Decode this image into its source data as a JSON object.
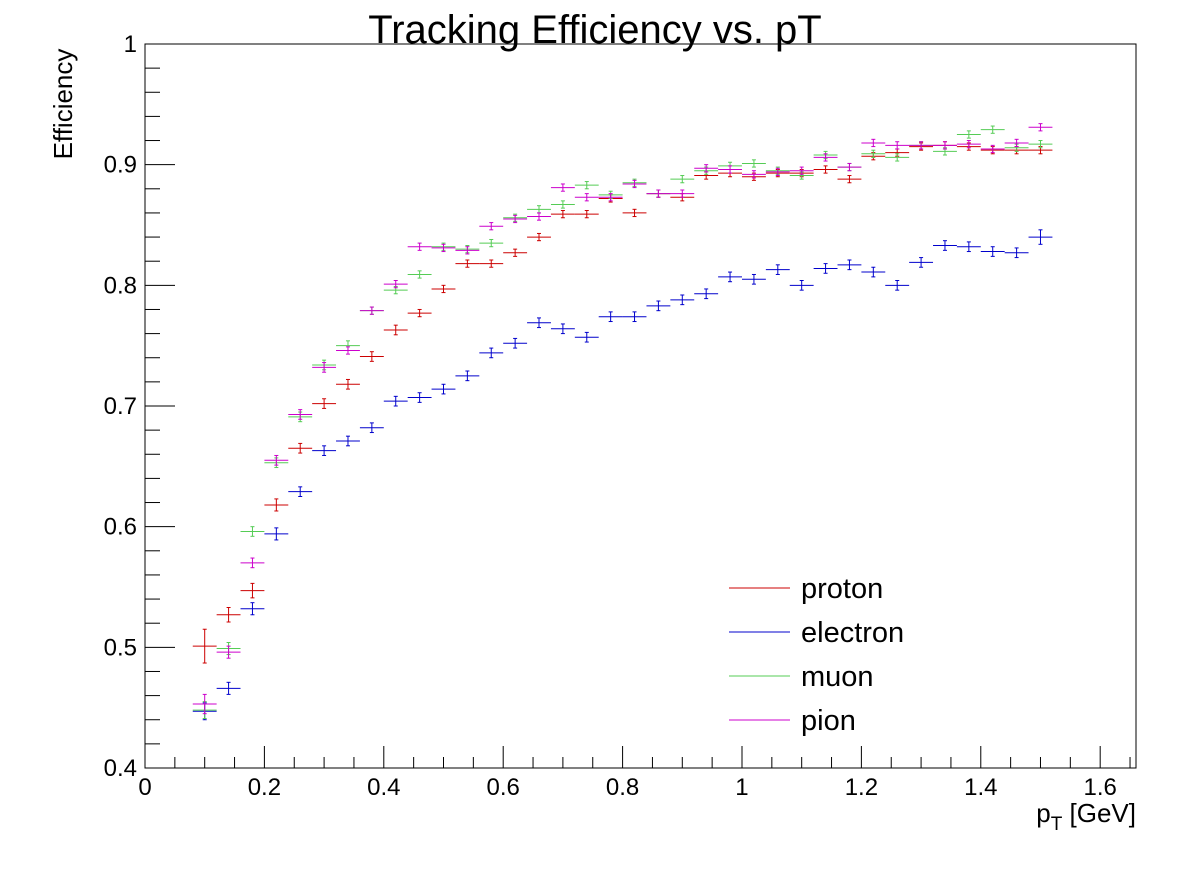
{
  "chart_data": {
    "type": "scatter",
    "title": "Tracking Efficiency vs. pT",
    "ylabel": "Efficiency",
    "xlabel_main": "p",
    "xlabel_sub": "T",
    "xlabel_unit": " [GeV]",
    "xlim": [
      0,
      1.66
    ],
    "ylim": [
      0.4,
      1.0
    ],
    "x_ticks": [
      0,
      0.2,
      0.4,
      0.6,
      0.8,
      1.0,
      1.2,
      1.4,
      1.6
    ],
    "x_tick_labels": [
      "0",
      "0.2",
      "0.4",
      "0.6",
      "0.8",
      "1",
      "1.2",
      "1.4",
      "1.6"
    ],
    "y_ticks": [
      0.4,
      0.5,
      0.6,
      0.7,
      0.8,
      0.9,
      1.0
    ],
    "y_tick_labels": [
      "0.4",
      "0.5",
      "0.6",
      "0.7",
      "0.8",
      "0.9",
      "1"
    ],
    "grid": false,
    "legend_position": "bottom-right",
    "bin_half_width": 0.02,
    "x": [
      0.1,
      0.14,
      0.18,
      0.22,
      0.26,
      0.3,
      0.34,
      0.38,
      0.42,
      0.46,
      0.5,
      0.54,
      0.58,
      0.62,
      0.66,
      0.7,
      0.74,
      0.78,
      0.82,
      0.86,
      0.9,
      0.94,
      0.98,
      1.02,
      1.06,
      1.1,
      1.14,
      1.18,
      1.22,
      1.26,
      1.3,
      1.34,
      1.38,
      1.42,
      1.46,
      1.5
    ],
    "series": [
      {
        "name": "proton",
        "color": "#cc0000",
        "values": [
          0.501,
          0.527,
          0.547,
          0.618,
          0.665,
          0.702,
          0.718,
          0.741,
          0.763,
          0.777,
          0.797,
          0.818,
          0.818,
          0.827,
          0.84,
          0.859,
          0.859,
          0.872,
          0.86,
          0.876,
          0.873,
          0.891,
          0.893,
          0.89,
          0.893,
          0.893,
          0.896,
          0.888,
          0.907,
          0.91,
          0.915,
          0.916,
          0.915,
          0.912,
          0.912,
          0.912
        ],
        "err": [
          0.014,
          0.006,
          0.006,
          0.005,
          0.004,
          0.004,
          0.004,
          0.004,
          0.004,
          0.003,
          0.003,
          0.003,
          0.003,
          0.003,
          0.003,
          0.003,
          0.003,
          0.003,
          0.003,
          0.003,
          0.003,
          0.003,
          0.003,
          0.003,
          0.003,
          0.003,
          0.003,
          0.003,
          0.003,
          0.003,
          0.003,
          0.003,
          0.003,
          0.003,
          0.003,
          0.003
        ]
      },
      {
        "name": "electron",
        "color": "#0000cc",
        "values": [
          0.447,
          0.466,
          0.532,
          0.594,
          0.629,
          0.663,
          0.671,
          0.682,
          0.704,
          0.707,
          0.714,
          0.725,
          0.744,
          0.752,
          0.769,
          0.764,
          0.757,
          0.774,
          0.774,
          0.783,
          0.788,
          0.793,
          0.807,
          0.805,
          0.813,
          0.8,
          0.814,
          0.817,
          0.811,
          0.8,
          0.819,
          0.833,
          0.832,
          0.828,
          0.827,
          0.84
        ],
        "err": [
          0.007,
          0.005,
          0.005,
          0.005,
          0.004,
          0.004,
          0.004,
          0.004,
          0.004,
          0.004,
          0.004,
          0.004,
          0.004,
          0.004,
          0.004,
          0.004,
          0.004,
          0.004,
          0.004,
          0.004,
          0.004,
          0.004,
          0.004,
          0.004,
          0.004,
          0.004,
          0.004,
          0.004,
          0.004,
          0.004,
          0.004,
          0.004,
          0.004,
          0.004,
          0.004,
          0.006
        ]
      },
      {
        "name": "muon",
        "color": "#55cc55",
        "values": [
          0.448,
          0.499,
          0.596,
          0.653,
          0.691,
          0.734,
          0.75,
          0.779,
          0.796,
          0.809,
          0.832,
          0.83,
          0.835,
          0.856,
          0.863,
          0.867,
          0.883,
          0.875,
          0.885,
          0.876,
          0.888,
          0.895,
          0.899,
          0.901,
          0.895,
          0.891,
          0.908,
          0.898,
          0.909,
          0.906,
          0.916,
          0.911,
          0.925,
          0.929,
          0.914,
          0.917
        ],
        "err": [
          0.007,
          0.005,
          0.004,
          0.004,
          0.004,
          0.004,
          0.004,
          0.003,
          0.003,
          0.003,
          0.003,
          0.003,
          0.003,
          0.003,
          0.003,
          0.003,
          0.003,
          0.003,
          0.003,
          0.003,
          0.003,
          0.003,
          0.003,
          0.003,
          0.003,
          0.003,
          0.003,
          0.003,
          0.003,
          0.003,
          0.003,
          0.003,
          0.003,
          0.003,
          0.003,
          0.003
        ]
      },
      {
        "name": "pion",
        "color": "#cc00cc",
        "values": [
          0.453,
          0.496,
          0.57,
          0.655,
          0.693,
          0.732,
          0.746,
          0.779,
          0.801,
          0.832,
          0.831,
          0.829,
          0.849,
          0.855,
          0.857,
          0.881,
          0.873,
          0.873,
          0.884,
          0.876,
          0.876,
          0.897,
          0.896,
          0.892,
          0.894,
          0.895,
          0.906,
          0.898,
          0.918,
          0.916,
          0.916,
          0.916,
          0.917,
          0.913,
          0.918,
          0.931
        ],
        "err": [
          0.008,
          0.005,
          0.004,
          0.004,
          0.004,
          0.004,
          0.003,
          0.003,
          0.003,
          0.003,
          0.003,
          0.003,
          0.003,
          0.003,
          0.003,
          0.003,
          0.003,
          0.003,
          0.003,
          0.003,
          0.003,
          0.003,
          0.003,
          0.003,
          0.003,
          0.003,
          0.003,
          0.003,
          0.003,
          0.003,
          0.003,
          0.003,
          0.003,
          0.003,
          0.003,
          0.003
        ]
      }
    ]
  }
}
